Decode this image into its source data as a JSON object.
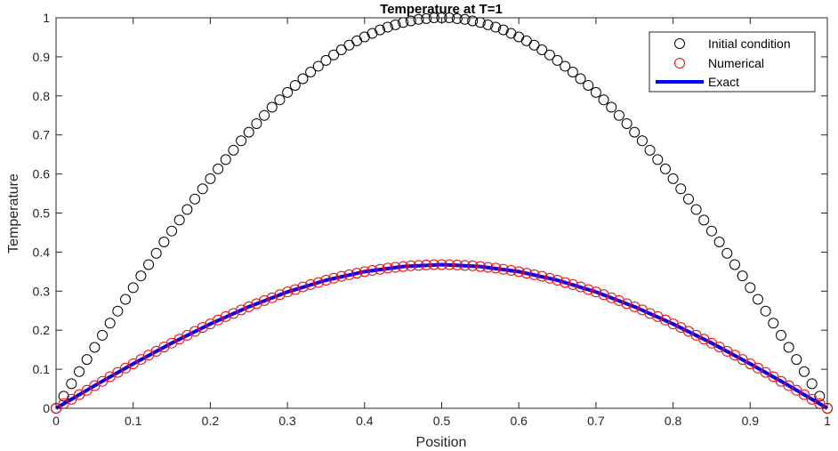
{
  "chart_data": {
    "type": "scatter",
    "title": "Temperature at T=1",
    "xlabel": "Position",
    "ylabel": "Temperature",
    "xlim": [
      0,
      1
    ],
    "ylim": [
      0,
      1
    ],
    "xticks": [
      0,
      0.1,
      0.2,
      0.3,
      0.4,
      0.5,
      0.6,
      0.7,
      0.8,
      0.9,
      1
    ],
    "xtick_labels": [
      "0",
      "0.1",
      "0.2",
      "0.3",
      "0.4",
      "0.5",
      "0.6",
      "0.7",
      "0.8",
      "0.9",
      "1"
    ],
    "yticks": [
      0,
      0.1,
      0.2,
      0.3,
      0.4,
      0.5,
      0.6,
      0.7,
      0.8,
      0.9,
      1
    ],
    "ytick_labels": [
      "0",
      "0.1",
      "0.2",
      "0.3",
      "0.4",
      "0.5",
      "0.6",
      "0.7",
      "0.8",
      "0.9",
      "1"
    ],
    "grid": false,
    "legend_position": "top-right",
    "series": [
      {
        "name": "Initial condition",
        "style": "markers",
        "marker": "circle",
        "color": "#000000",
        "x": [
          0,
          0.01,
          0.02,
          0.03,
          0.04,
          0.05,
          0.06,
          0.07,
          0.08,
          0.09,
          0.1,
          0.11,
          0.12,
          0.13,
          0.14,
          0.15,
          0.16,
          0.17,
          0.18,
          0.19,
          0.2,
          0.21,
          0.22,
          0.23,
          0.24,
          0.25,
          0.26,
          0.27,
          0.28,
          0.29,
          0.3,
          0.31,
          0.32,
          0.33,
          0.34,
          0.35,
          0.36,
          0.37,
          0.38,
          0.39,
          0.4,
          0.41,
          0.42,
          0.43,
          0.44,
          0.45,
          0.46,
          0.47,
          0.48,
          0.49,
          0.5,
          0.51,
          0.52,
          0.53,
          0.54,
          0.55,
          0.56,
          0.57,
          0.58,
          0.59,
          0.6,
          0.61,
          0.62,
          0.63,
          0.64,
          0.65,
          0.66,
          0.67,
          0.68,
          0.69,
          0.7,
          0.71,
          0.72,
          0.73,
          0.74,
          0.75,
          0.76,
          0.77,
          0.78,
          0.79,
          0.8,
          0.81,
          0.82,
          0.83,
          0.84,
          0.85,
          0.86,
          0.87,
          0.88,
          0.89,
          0.9,
          0.91,
          0.92,
          0.93,
          0.94,
          0.95,
          0.96,
          0.97,
          0.98,
          0.99,
          1
        ],
        "y": [
          0,
          0.031,
          0.063,
          0.094,
          0.125,
          0.156,
          0.187,
          0.218,
          0.249,
          0.279,
          0.309,
          0.339,
          0.368,
          0.397,
          0.426,
          0.454,
          0.482,
          0.509,
          0.536,
          0.562,
          0.588,
          0.613,
          0.637,
          0.661,
          0.685,
          0.707,
          0.729,
          0.75,
          0.771,
          0.79,
          0.809,
          0.827,
          0.844,
          0.861,
          0.876,
          0.891,
          0.905,
          0.918,
          0.93,
          0.941,
          0.951,
          0.96,
          0.969,
          0.976,
          0.982,
          0.988,
          0.992,
          0.996,
          0.998,
          1,
          1,
          1,
          0.998,
          0.996,
          0.992,
          0.988,
          0.982,
          0.976,
          0.969,
          0.96,
          0.951,
          0.941,
          0.93,
          0.918,
          0.905,
          0.891,
          0.876,
          0.861,
          0.844,
          0.827,
          0.809,
          0.79,
          0.771,
          0.75,
          0.729,
          0.707,
          0.685,
          0.661,
          0.637,
          0.613,
          0.588,
          0.562,
          0.536,
          0.509,
          0.482,
          0.454,
          0.426,
          0.397,
          0.368,
          0.339,
          0.309,
          0.279,
          0.249,
          0.218,
          0.187,
          0.156,
          0.125,
          0.094,
          0.063,
          0.031,
          0
        ]
      },
      {
        "name": "Numerical",
        "style": "markers",
        "marker": "circle",
        "color": "#ff0000",
        "x": [
          0,
          0.01,
          0.02,
          0.03,
          0.04,
          0.05,
          0.06,
          0.07,
          0.08,
          0.09,
          0.1,
          0.11,
          0.12,
          0.13,
          0.14,
          0.15,
          0.16,
          0.17,
          0.18,
          0.19,
          0.2,
          0.21,
          0.22,
          0.23,
          0.24,
          0.25,
          0.26,
          0.27,
          0.28,
          0.29,
          0.3,
          0.31,
          0.32,
          0.33,
          0.34,
          0.35,
          0.36,
          0.37,
          0.38,
          0.39,
          0.4,
          0.41,
          0.42,
          0.43,
          0.44,
          0.45,
          0.46,
          0.47,
          0.48,
          0.49,
          0.5,
          0.51,
          0.52,
          0.53,
          0.54,
          0.55,
          0.56,
          0.57,
          0.58,
          0.59,
          0.6,
          0.61,
          0.62,
          0.63,
          0.64,
          0.65,
          0.66,
          0.67,
          0.68,
          0.69,
          0.7,
          0.71,
          0.72,
          0.73,
          0.74,
          0.75,
          0.76,
          0.77,
          0.78,
          0.79,
          0.8,
          0.81,
          0.82,
          0.83,
          0.84,
          0.85,
          0.86,
          0.87,
          0.88,
          0.89,
          0.9,
          0.91,
          0.92,
          0.93,
          0.94,
          0.95,
          0.96,
          0.97,
          0.98,
          0.99,
          1
        ],
        "y": [
          0,
          0.012,
          0.023,
          0.035,
          0.046,
          0.058,
          0.069,
          0.081,
          0.092,
          0.103,
          0.114,
          0.125,
          0.136,
          0.146,
          0.157,
          0.167,
          0.177,
          0.187,
          0.197,
          0.207,
          0.216,
          0.226,
          0.235,
          0.243,
          0.252,
          0.26,
          0.268,
          0.276,
          0.283,
          0.291,
          0.298,
          0.304,
          0.311,
          0.317,
          0.322,
          0.328,
          0.333,
          0.338,
          0.342,
          0.346,
          0.35,
          0.353,
          0.356,
          0.359,
          0.361,
          0.363,
          0.365,
          0.366,
          0.367,
          0.368,
          0.368,
          0.368,
          0.367,
          0.366,
          0.365,
          0.363,
          0.361,
          0.359,
          0.356,
          0.353,
          0.35,
          0.346,
          0.342,
          0.338,
          0.333,
          0.328,
          0.322,
          0.317,
          0.311,
          0.304,
          0.298,
          0.291,
          0.283,
          0.276,
          0.268,
          0.26,
          0.252,
          0.243,
          0.235,
          0.226,
          0.216,
          0.207,
          0.197,
          0.187,
          0.177,
          0.167,
          0.157,
          0.146,
          0.136,
          0.125,
          0.114,
          0.103,
          0.092,
          0.081,
          0.069,
          0.058,
          0.046,
          0.035,
          0.023,
          0.012,
          0
        ]
      },
      {
        "name": "Exact",
        "style": "line",
        "color": "#0000ff",
        "x": [
          0,
          0.05,
          0.1,
          0.15,
          0.2,
          0.25,
          0.3,
          0.35,
          0.4,
          0.45,
          0.5,
          0.55,
          0.6,
          0.65,
          0.7,
          0.75,
          0.8,
          0.85,
          0.9,
          0.95,
          1
        ],
        "y": [
          0,
          0.058,
          0.114,
          0.167,
          0.216,
          0.26,
          0.298,
          0.328,
          0.35,
          0.363,
          0.368,
          0.363,
          0.35,
          0.328,
          0.298,
          0.26,
          0.216,
          0.167,
          0.114,
          0.058,
          0
        ]
      }
    ]
  }
}
